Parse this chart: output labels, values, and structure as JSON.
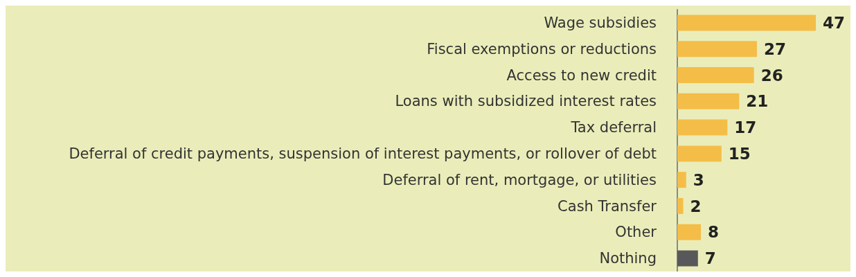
{
  "chart_data": {
    "type": "bar",
    "orientation": "horizontal",
    "categories": [
      "Wage subsidies",
      "Fiscal exemptions or reductions",
      "Access to new credit",
      "Loans with subsidized interest rates",
      "Tax deferral",
      "Deferral of credit payments, suspension of interest payments, or rollover of debt",
      "Deferral of rent, mortgage, or utilities",
      "Cash Transfer",
      "Other",
      "Nothing"
    ],
    "values": [
      47,
      27,
      26,
      21,
      17,
      15,
      3,
      2,
      8,
      7
    ],
    "colors": [
      "#f4bd48",
      "#f4bd48",
      "#f4bd48",
      "#f4bd48",
      "#f4bd48",
      "#f4bd48",
      "#f4bd48",
      "#f4bd48",
      "#f4bd48",
      "#58585a"
    ],
    "data_labels": true
  }
}
